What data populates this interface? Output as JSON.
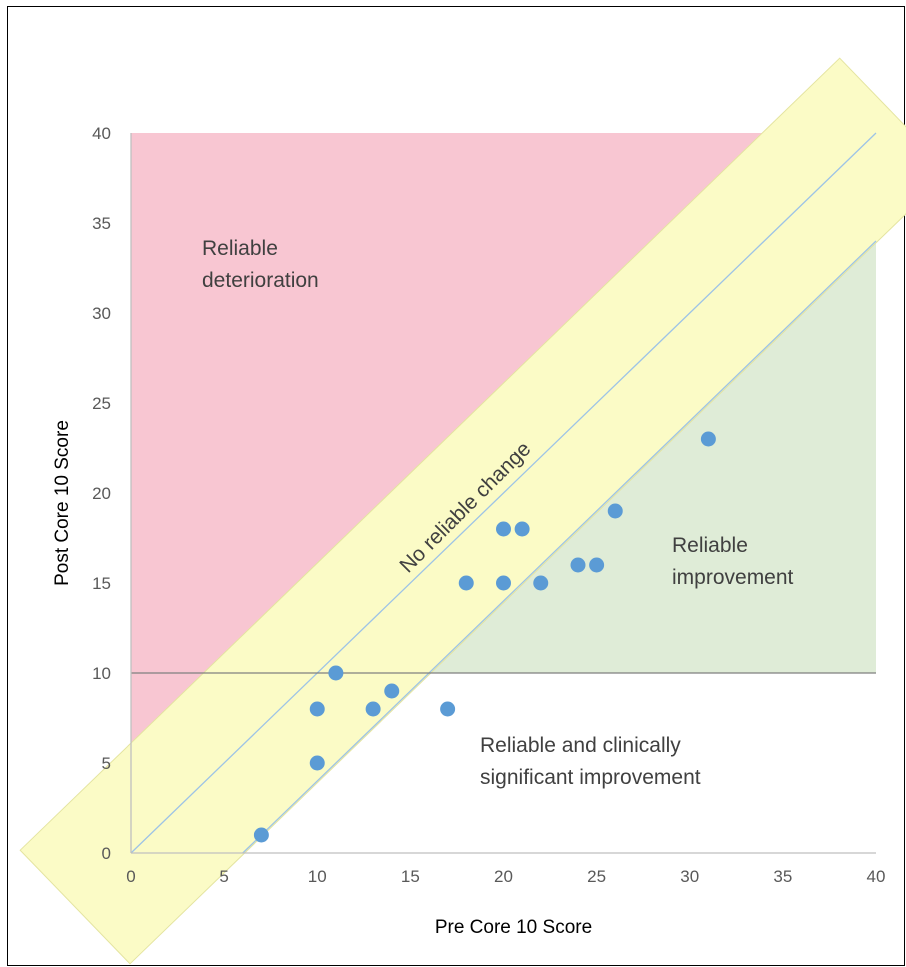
{
  "chart_data": {
    "type": "scatter",
    "xlabel": "Pre Core 10 Score",
    "ylabel": "Post Core 10 Score",
    "xlim": [
      0,
      40
    ],
    "ylim": [
      0,
      40
    ],
    "x_ticks": [
      "0",
      "5",
      "10",
      "15",
      "20",
      "25",
      "30",
      "35",
      "40"
    ],
    "y_ticks": [
      "0",
      "5",
      "10",
      "15",
      "20",
      "25",
      "30",
      "35",
      "40"
    ],
    "grid": false,
    "clinical_cutoff": 10,
    "reliable_change_index": 6,
    "points": [
      {
        "x": 7,
        "y": 1
      },
      {
        "x": 10,
        "y": 5
      },
      {
        "x": 10,
        "y": 8
      },
      {
        "x": 11,
        "y": 10
      },
      {
        "x": 13,
        "y": 8
      },
      {
        "x": 14,
        "y": 9
      },
      {
        "x": 17,
        "y": 8
      },
      {
        "x": 18,
        "y": 15
      },
      {
        "x": 20,
        "y": 15
      },
      {
        "x": 20,
        "y": 18
      },
      {
        "x": 21,
        "y": 18
      },
      {
        "x": 22,
        "y": 15
      },
      {
        "x": 24,
        "y": 16
      },
      {
        "x": 25,
        "y": 16
      },
      {
        "x": 26,
        "y": 19
      },
      {
        "x": 31,
        "y": 23
      }
    ],
    "regions": {
      "deterioration": "Reliable\ndeterioration",
      "no_change": "No reliable change",
      "improvement": "Reliable\nimprovement",
      "clinical": "Reliable and clinically\nsignificant improvement"
    },
    "colors": {
      "deterioration": "#f8c6d2",
      "no_change": "#fbfbc6",
      "no_change_border": "#e4e4a0",
      "improvement": "#dfecd7",
      "points": "#5b9bd5",
      "diagonal": "#9dc3e6",
      "cutoff_line": "#7f7f7f",
      "axis": "#bfbfbf"
    }
  }
}
